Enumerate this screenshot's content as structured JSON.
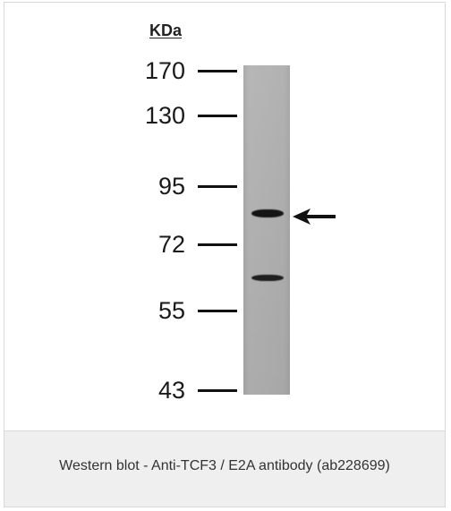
{
  "figure": {
    "unit_label": "KDa",
    "markers": [
      {
        "label": "170"
      },
      {
        "label": "130"
      },
      {
        "label": "95"
      },
      {
        "label": "72"
      },
      {
        "label": "55"
      },
      {
        "label": "43"
      }
    ],
    "caption": "Western blot - Anti-TCF3 / E2A antibody (ab228699)"
  },
  "colors": {
    "lane": "#b3b3b3",
    "band": "#141414",
    "caption_bg": "#efefef",
    "border": "#d9d9d9"
  },
  "icons": {
    "arrow": "arrow-left-icon"
  }
}
